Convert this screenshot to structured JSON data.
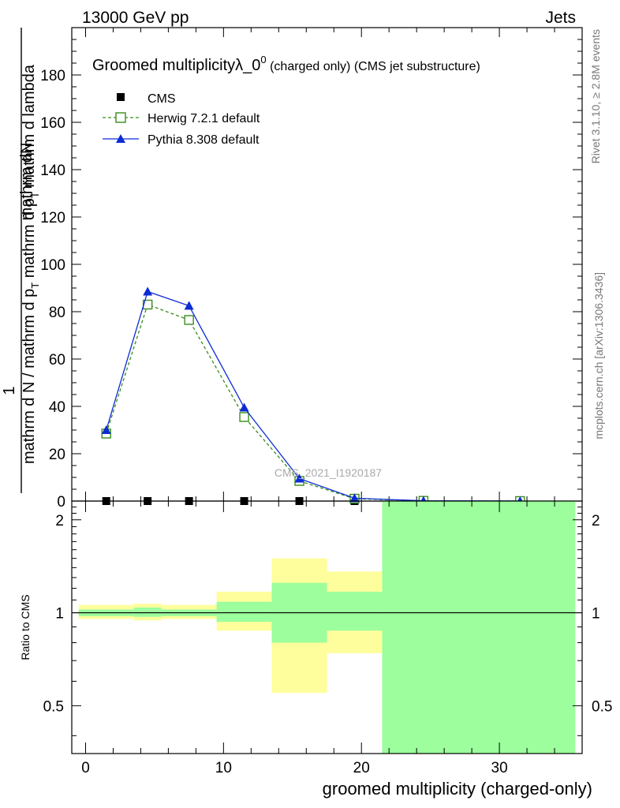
{
  "header": {
    "left": "13000 GeV pp",
    "right": "Jets"
  },
  "side_labels": {
    "rivet": "Rivet 3.1.10, ≥ 2.8M events",
    "mcplots": "mcplots.cern.ch [arXiv:1306.3436]"
  },
  "watermark": "CMS_2021_I1920187",
  "chart_data": [
    {
      "type": "line",
      "title": {
        "main": "Groomed multiplicityλ_0",
        "sup": "0",
        "suffix": " (charged only) (CMS jet substructure)"
      },
      "ylabel": {
        "numerator": "mathrm dN",
        "line1": "mathrm d N / mathrm d p",
        "sub1": "T",
        "line2": " mathrm d p",
        "sub2": "T",
        "line3": " mathrm d lambda",
        "prefix": "1"
      },
      "ylim": [
        0,
        200
      ],
      "xlim": [
        -1,
        36
      ],
      "y_ticks": [
        0,
        20,
        40,
        60,
        80,
        100,
        120,
        140,
        160,
        180
      ],
      "y_tick_labels": [
        "0",
        "20",
        "40",
        "60",
        "80",
        "100",
        "120",
        "140",
        "160",
        "180"
      ],
      "legend_position": "top-left",
      "series": [
        {
          "name": "CMS",
          "color": "#000000",
          "marker": "square",
          "x": [
            1.5,
            4.5,
            7.5,
            11.5,
            15.5,
            19.5,
            24.5,
            31.5
          ],
          "y": [
            0,
            0,
            0,
            0,
            0,
            0,
            0,
            0
          ]
        },
        {
          "name": "Herwig 7.2.1 default",
          "color": "#3a8c1c",
          "marker": "open-square",
          "dash": "4,3",
          "x": [
            1.5,
            4.5,
            7.5,
            11.5,
            15.5,
            19.5,
            24.5,
            31.5
          ],
          "y": [
            28.5,
            83,
            76.5,
            35.5,
            8.5,
            1.0,
            0.1,
            0.01
          ]
        },
        {
          "name": "Pythia 8.308 default",
          "color": "#0c2bd6",
          "marker": "triangle",
          "x": [
            1.5,
            4.5,
            7.5,
            11.5,
            15.5,
            19.5,
            24.5,
            31.5
          ],
          "y": [
            30,
            88.5,
            82.5,
            39.5,
            9.5,
            1.2,
            0.12,
            0.01
          ]
        }
      ]
    },
    {
      "type": "area",
      "ylabel": "Ratio to CMS",
      "xlabel": "groomed multiplicity (charged-only)",
      "ylim": [
        0.35,
        2.3
      ],
      "y_ticks": [
        0.5,
        1,
        2
      ],
      "y_tick_labels": [
        "0.5",
        "1",
        "2"
      ],
      "x_ticks": [
        0,
        10,
        20,
        30
      ],
      "x_tick_labels": [
        "0",
        "10",
        "20",
        "30"
      ],
      "bins": [
        {
          "lo": -0.5,
          "hi": 3.5,
          "stat": [
            0.975,
            1.025
          ],
          "total": [
            0.955,
            1.06
          ]
        },
        {
          "lo": 3.5,
          "hi": 5.5,
          "stat": [
            0.97,
            1.04
          ],
          "total": [
            0.945,
            1.07
          ]
        },
        {
          "lo": 5.5,
          "hi": 9.5,
          "stat": [
            0.975,
            1.025
          ],
          "total": [
            0.955,
            1.06
          ]
        },
        {
          "lo": 9.5,
          "hi": 13.5,
          "stat": [
            0.935,
            1.085
          ],
          "total": [
            0.875,
            1.17
          ]
        },
        {
          "lo": 13.5,
          "hi": 17.5,
          "stat": [
            0.8,
            1.25
          ],
          "total": [
            0.55,
            1.5
          ]
        },
        {
          "lo": 17.5,
          "hi": 21.5,
          "stat": [
            0.875,
            1.17
          ],
          "total": [
            0.74,
            1.36
          ]
        },
        {
          "lo": 21.5,
          "hi": 35.5,
          "stat": [
            0.35,
            2.3
          ],
          "total": [
            0.35,
            2.3
          ]
        }
      ]
    }
  ]
}
